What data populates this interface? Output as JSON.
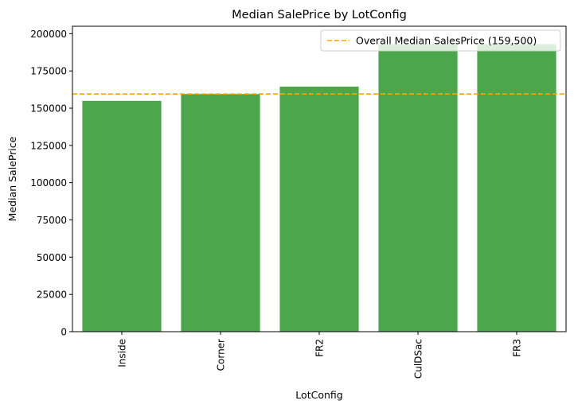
{
  "chart_data": {
    "type": "bar",
    "title": "Median SalePrice by LotConfig",
    "xlabel": "LotConfig",
    "ylabel": "Median SalePrice",
    "categories": [
      "Inside",
      "Corner",
      "FR2",
      "CulDSac",
      "FR3"
    ],
    "values": [
      154900,
      159500,
      164500,
      193000,
      193000
    ],
    "ylim": [
      0,
      205000
    ],
    "yticks": [
      0,
      25000,
      50000,
      75000,
      100000,
      125000,
      150000,
      175000,
      200000
    ],
    "ytick_labels": [
      "0",
      "25000",
      "50000",
      "75000",
      "100000",
      "125000",
      "150000",
      "175000",
      "200000"
    ],
    "bar_color": "#4ca64c",
    "reference_line": {
      "value": 159500,
      "label": "Overall Median SalesPrice (159,500)",
      "color": "#ffa500",
      "style": "dashed"
    },
    "legend_position": "top-right",
    "grid": false
  }
}
